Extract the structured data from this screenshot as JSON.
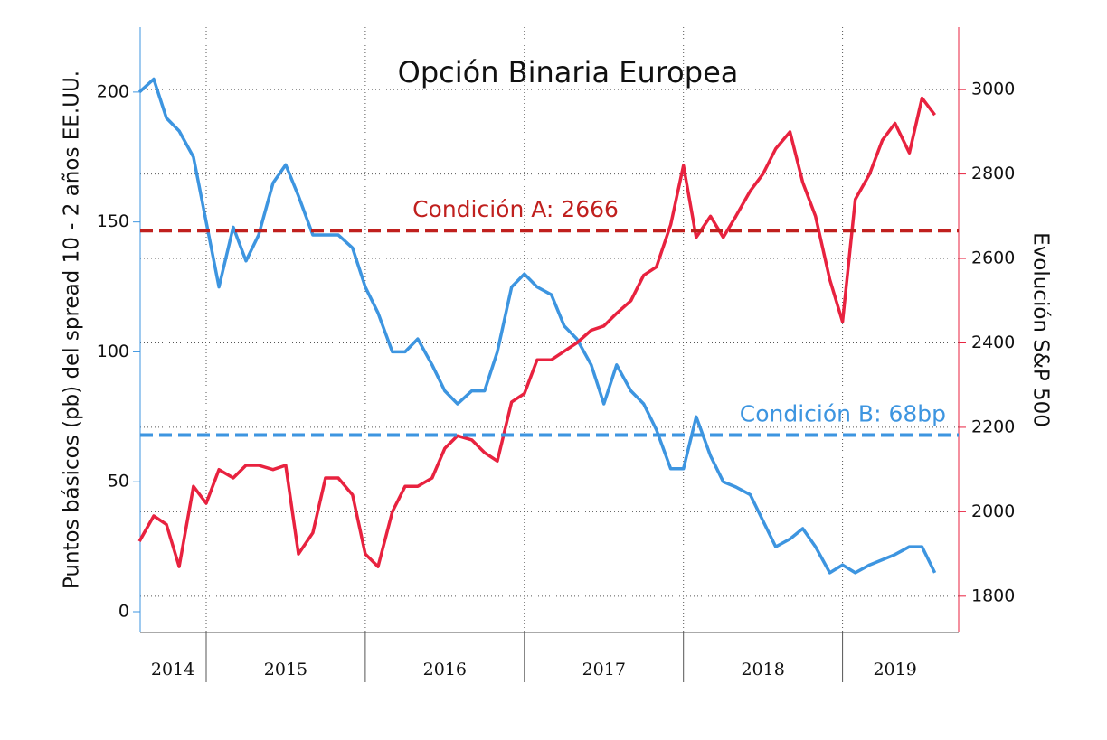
{
  "chart_data": {
    "type": "line",
    "title": "Opción Binaria Europea",
    "y_label": "Puntos básicos (pb) del spread 10 - 2 años EE.UU.",
    "y2_label": "Evolución S&P 500",
    "x": [
      2014.58,
      2014.67,
      2014.75,
      2014.83,
      2014.92,
      2015.0,
      2015.08,
      2015.17,
      2015.25,
      2015.33,
      2015.42,
      2015.5,
      2015.58,
      2015.67,
      2015.75,
      2015.83,
      2015.92,
      2016.0,
      2016.08,
      2016.17,
      2016.25,
      2016.33,
      2016.42,
      2016.5,
      2016.58,
      2016.67,
      2016.75,
      2016.83,
      2016.92,
      2017.0,
      2017.08,
      2017.17,
      2017.25,
      2017.33,
      2017.42,
      2017.5,
      2017.58,
      2017.67,
      2017.75,
      2017.83,
      2017.92,
      2018.0,
      2018.08,
      2018.17,
      2018.25,
      2018.33,
      2018.42,
      2018.5,
      2018.58,
      2018.67,
      2018.75,
      2018.83,
      2018.92,
      2019.0,
      2019.08,
      2019.17,
      2019.25,
      2019.33,
      2019.42,
      2019.5,
      2019.58
    ],
    "series": [
      {
        "color": "#3d95e0",
        "axis": "y",
        "values": [
          200,
          205,
          190,
          185,
          175,
          150,
          125,
          148,
          135,
          145,
          165,
          172,
          160,
          145,
          145,
          145,
          140,
          125,
          115,
          100,
          100,
          105,
          95,
          85,
          80,
          85,
          85,
          100,
          125,
          130,
          125,
          122,
          110,
          105,
          95,
          80,
          95,
          85,
          80,
          70,
          55,
          55,
          75,
          60,
          50,
          48,
          45,
          35,
          25,
          28,
          32,
          25,
          15,
          18,
          15,
          18,
          20,
          22,
          25,
          25,
          15
        ]
      },
      {
        "color": "#e8223f",
        "axis": "y2",
        "values": [
          1930,
          1990,
          1970,
          1870,
          2060,
          2020,
          2100,
          2080,
          2110,
          2110,
          2100,
          2110,
          1900,
          1950,
          2080,
          2080,
          2040,
          1900,
          1870,
          2000,
          2060,
          2060,
          2080,
          2150,
          2180,
          2170,
          2140,
          2120,
          2260,
          2280,
          2360,
          2360,
          2380,
          2400,
          2430,
          2440,
          2470,
          2500,
          2560,
          2580,
          2680,
          2820,
          2650,
          2700,
          2650,
          2700,
          2760,
          2800,
          2860,
          2900,
          2780,
          2700,
          2550,
          2450,
          2740,
          2800,
          2880,
          2920,
          2850,
          2980,
          2940
        ]
      }
    ],
    "reference_lines": [
      {
        "label": "Condición A: 2666",
        "value": 2666,
        "axis": "y2",
        "color": "#c0201e"
      },
      {
        "label": "Condición B: 68bp",
        "value": 68,
        "axis": "y",
        "color": "#3d95e0"
      }
    ],
    "xlim": [
      2014.585,
      2019.73
    ],
    "xticks": [
      {
        "value": 2014.79,
        "label": "2014"
      },
      {
        "value": 2015.5,
        "label": "2015"
      },
      {
        "value": 2016.5,
        "label": "2016"
      },
      {
        "value": 2017.5,
        "label": "2017"
      },
      {
        "value": 2018.5,
        "label": "2018"
      },
      {
        "value": 2019.33,
        "label": "2019"
      }
    ],
    "xgrid": [
      2015,
      2016,
      2017,
      2018,
      2019
    ],
    "ylim": [
      -8,
      225
    ],
    "yticks": [
      0,
      50,
      100,
      150,
      200
    ],
    "y2lim": [
      1714,
      3148
    ],
    "y2ticks": [
      1800,
      2000,
      2200,
      2400,
      2600,
      2800,
      3000
    ],
    "y_color": "#3d95e0",
    "y2_color": "#e8223f",
    "grid": true
  }
}
